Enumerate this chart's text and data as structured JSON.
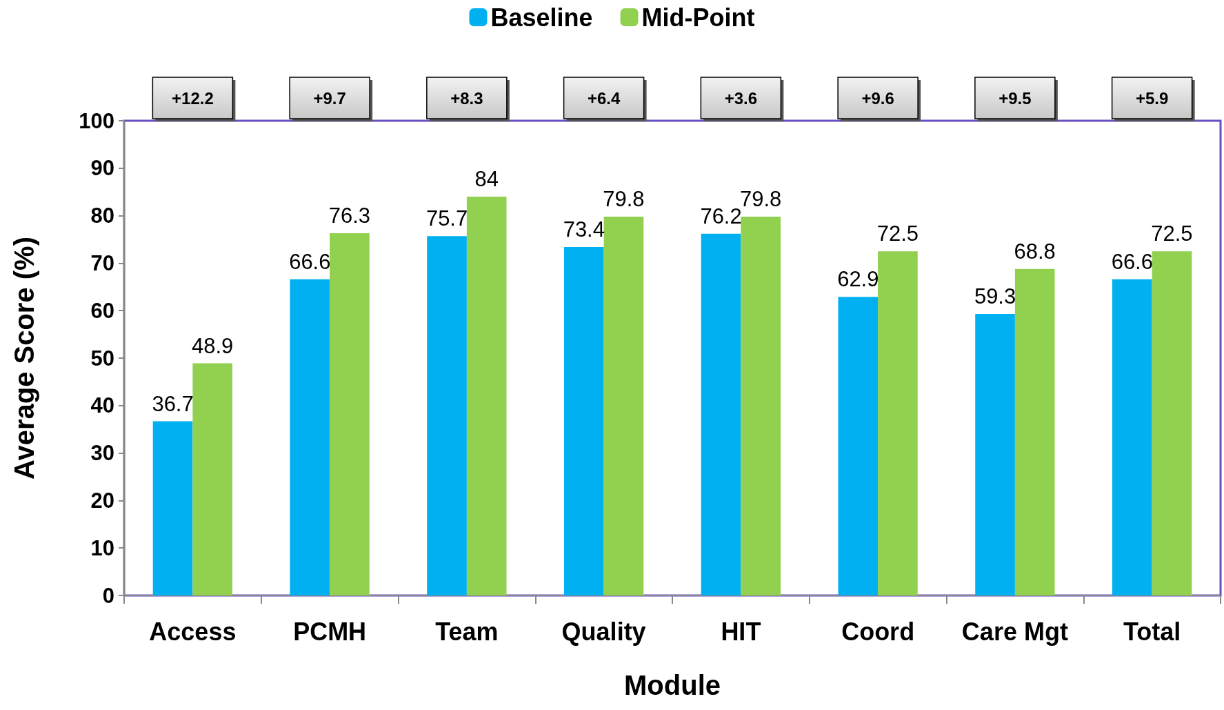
{
  "chart_data": {
    "type": "bar",
    "xlabel": "Module",
    "ylabel": "Average Score (%)",
    "categories": [
      "Access",
      "PCMH",
      "Team",
      "Quality",
      "HIT",
      "Coord",
      "Care Mgt",
      "Total"
    ],
    "series": [
      {
        "name": "Baseline",
        "color": "#00b0f0",
        "values": [
          36.7,
          66.6,
          75.7,
          73.4,
          76.2,
          62.9,
          59.3,
          66.6
        ]
      },
      {
        "name": "Mid-Point",
        "color": "#92d050",
        "values": [
          48.9,
          76.3,
          84,
          79.8,
          79.8,
          72.5,
          68.8,
          72.5
        ]
      }
    ],
    "ylim": [
      0,
      100
    ],
    "yticks": [
      0,
      10,
      20,
      30,
      40,
      50,
      60,
      70,
      80,
      90,
      100
    ],
    "grid": false,
    "legend": "top",
    "data_labels": true,
    "annotations": [
      "+12.2",
      "+9.7",
      "+8.3",
      "+6.4",
      "+3.6",
      "+9.6",
      "+9.5",
      "+5.9"
    ]
  }
}
